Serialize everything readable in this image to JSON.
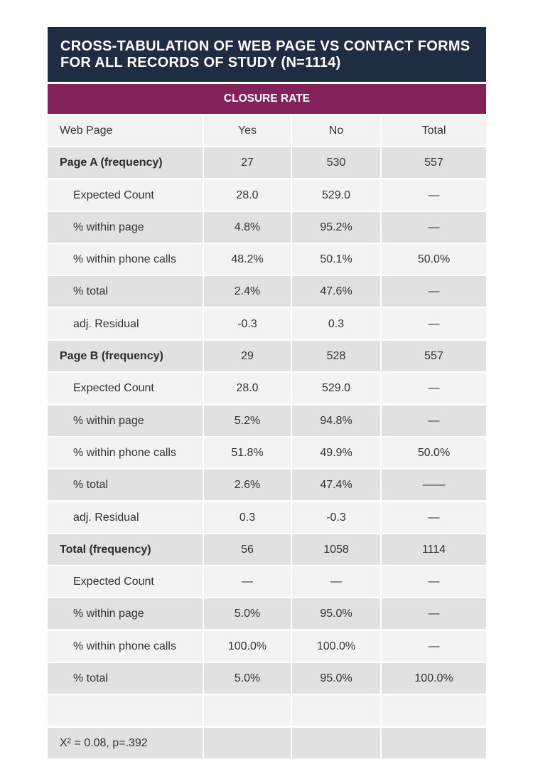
{
  "title_line1": "CROSS-TABULATION OF WEB PAGE VS CONTACT FORMS",
  "title_line2": "FOR ALL RECORDS OF STUDY (N=1114)",
  "subheader": "CLOSURE RATE",
  "columns": [
    "Web Page",
    "Yes",
    "No",
    "Total"
  ],
  "rows": [
    {
      "label": "Page A (frequency)",
      "yes": "27",
      "no": "530",
      "total": "557"
    },
    {
      "label": "Expected Count",
      "yes": "28.0",
      "no": "529.0",
      "total": "—"
    },
    {
      "label": "% within page",
      "yes": "4.8%",
      "no": "95.2%",
      "total": "—"
    },
    {
      "label": "% within phone calls",
      "yes": "48.2%",
      "no": "50.1%",
      "total": "50.0%"
    },
    {
      "label": "% total",
      "yes": "2.4%",
      "no": "47.6%",
      "total": "—"
    },
    {
      "label": "adj. Residual",
      "yes": "-0.3",
      "no": "0.3",
      "total": "—"
    },
    {
      "label": "Page B (frequency)",
      "yes": "29",
      "no": "528",
      "total": "557"
    },
    {
      "label": "Expected Count",
      "yes": "28.0",
      "no": "529.0",
      "total": "—"
    },
    {
      "label": "% within page",
      "yes": "5.2%",
      "no": "94.8%",
      "total": "—"
    },
    {
      "label": "% within phone calls",
      "yes": "51.8%",
      "no": "49.9%",
      "total": "50.0%"
    },
    {
      "label": "% total",
      "yes": "2.6%",
      "no": "47.4%",
      "total": "——"
    },
    {
      "label": "adj. Residual",
      "yes": "0.3",
      "no": "-0.3",
      "total": "—"
    },
    {
      "label": "Total (frequency)",
      "yes": "56",
      "no": "1058",
      "total": "1114"
    },
    {
      "label": "Expected Count",
      "yes": "—",
      "no": "—",
      "total": "—"
    },
    {
      "label": "% within page",
      "yes": "5.0%",
      "no": "95.0%",
      "total": "—"
    },
    {
      "label": "% within phone calls",
      "yes": "100.0%",
      "no": "100.0%",
      "total": "—"
    },
    {
      "label": "% total",
      "yes": "5.0%",
      "no": "95.0%",
      "total": "100.0%"
    },
    {
      "label": "",
      "yes": "",
      "no": "",
      "total": ""
    },
    {
      "label": "X² = 0.08, p=.392",
      "yes": "",
      "no": "",
      "total": ""
    }
  ]
}
